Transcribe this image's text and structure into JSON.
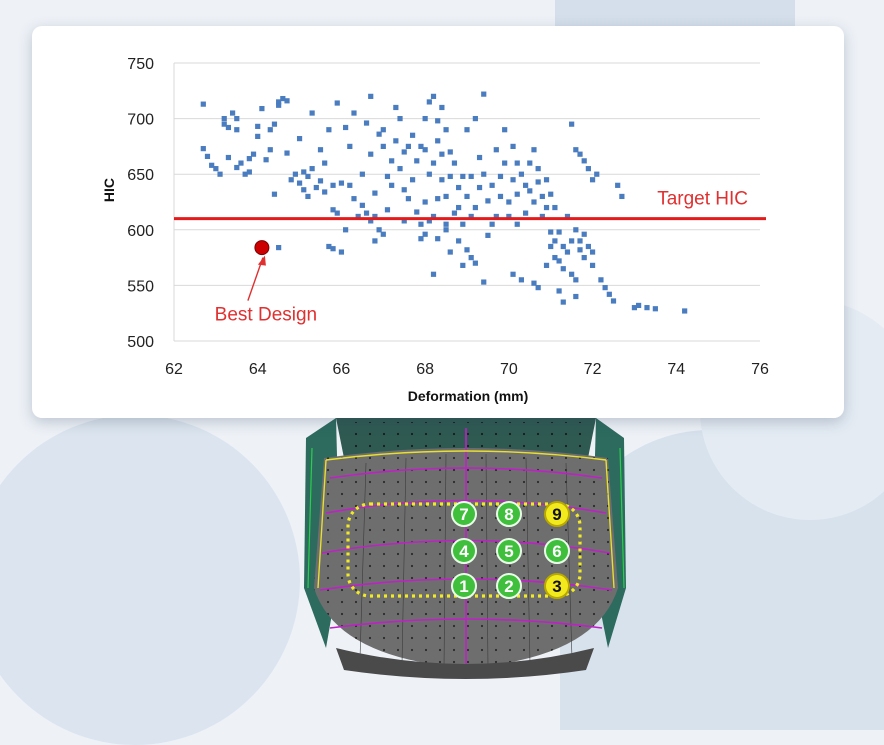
{
  "chart_data": {
    "type": "scatter",
    "title": "",
    "xlabel": "Deformation (mm)",
    "ylabel": "HIC",
    "xlim": [
      62,
      76
    ],
    "ylim": [
      500,
      750
    ],
    "x_ticks": [
      62,
      64,
      66,
      68,
      70,
      72,
      74,
      76
    ],
    "y_ticks": [
      500,
      550,
      600,
      650,
      700,
      750
    ],
    "grid": "horizontal",
    "legend": "none",
    "colors": {
      "points": "#4a7cc0",
      "target_line": "#e51b1b",
      "best_design": "#cc0000",
      "annotation": "#e03030",
      "grid": "#d9d9d9"
    },
    "reference_line": {
      "y": 610,
      "label": "Target HIC"
    },
    "highlight": {
      "x": 64.1,
      "y": 584,
      "label": "Best Design"
    },
    "series": [
      {
        "values": [
          [
            62.7,
            713
          ],
          [
            62.7,
            673
          ],
          [
            62.8,
            666
          ],
          [
            62.9,
            658
          ],
          [
            63.0,
            655
          ],
          [
            63.1,
            650
          ],
          [
            63.2,
            700
          ],
          [
            63.2,
            695
          ],
          [
            63.3,
            692
          ],
          [
            63.3,
            665
          ],
          [
            63.4,
            705
          ],
          [
            63.5,
            700
          ],
          [
            63.5,
            690
          ],
          [
            63.5,
            656
          ],
          [
            63.6,
            660
          ],
          [
            63.7,
            650
          ],
          [
            63.8,
            664
          ],
          [
            63.9,
            668
          ],
          [
            64.0,
            693
          ],
          [
            64.0,
            684
          ],
          [
            64.1,
            709
          ],
          [
            64.2,
            663
          ],
          [
            64.3,
            690
          ],
          [
            64.3,
            672
          ],
          [
            64.4,
            695
          ],
          [
            64.5,
            715
          ],
          [
            64.5,
            712
          ],
          [
            64.6,
            718
          ],
          [
            64.7,
            716
          ],
          [
            64.7,
            669
          ],
          [
            64.8,
            645
          ],
          [
            64.9,
            650
          ],
          [
            65.0,
            682
          ],
          [
            65.0,
            642
          ],
          [
            65.1,
            652
          ],
          [
            65.1,
            636
          ],
          [
            65.2,
            648
          ],
          [
            65.2,
            630
          ],
          [
            65.3,
            705
          ],
          [
            65.3,
            655
          ],
          [
            65.4,
            638
          ],
          [
            65.5,
            672
          ],
          [
            65.5,
            644
          ],
          [
            65.6,
            660
          ],
          [
            65.6,
            634
          ],
          [
            65.7,
            690
          ],
          [
            65.8,
            640
          ],
          [
            65.8,
            618
          ],
          [
            65.9,
            714
          ],
          [
            65.9,
            615
          ],
          [
            66.1,
            600
          ],
          [
            66.1,
            692
          ],
          [
            66.2,
            675
          ],
          [
            66.2,
            640
          ],
          [
            66.3,
            705
          ],
          [
            66.3,
            628
          ],
          [
            66.4,
            612
          ],
          [
            66.5,
            650
          ],
          [
            66.5,
            622
          ],
          [
            66.6,
            696
          ],
          [
            66.6,
            615
          ],
          [
            66.7,
            720
          ],
          [
            66.7,
            668
          ],
          [
            66.7,
            608
          ],
          [
            66.8,
            633
          ],
          [
            66.8,
            612
          ],
          [
            66.9,
            686
          ],
          [
            66.9,
            600
          ],
          [
            67.0,
            690
          ],
          [
            67.0,
            675
          ],
          [
            67.1,
            648
          ],
          [
            67.1,
            618
          ],
          [
            67.2,
            662
          ],
          [
            67.2,
            640
          ],
          [
            67.3,
            710
          ],
          [
            67.3,
            680
          ],
          [
            67.4,
            700
          ],
          [
            67.4,
            655
          ],
          [
            67.5,
            670
          ],
          [
            67.5,
            636
          ],
          [
            67.6,
            675
          ],
          [
            67.6,
            628
          ],
          [
            67.7,
            685
          ],
          [
            67.7,
            645
          ],
          [
            67.8,
            662
          ],
          [
            67.8,
            616
          ],
          [
            67.9,
            675
          ],
          [
            67.9,
            605
          ],
          [
            68.0,
            700
          ],
          [
            68.0,
            672
          ],
          [
            68.0,
            625
          ],
          [
            68.1,
            715
          ],
          [
            68.1,
            650
          ],
          [
            68.1,
            608
          ],
          [
            68.2,
            720
          ],
          [
            68.2,
            660
          ],
          [
            68.2,
            612
          ],
          [
            68.3,
            698
          ],
          [
            68.3,
            680
          ],
          [
            68.3,
            628
          ],
          [
            68.4,
            710
          ],
          [
            68.4,
            668
          ],
          [
            68.4,
            645
          ],
          [
            68.5,
            690
          ],
          [
            68.5,
            630
          ],
          [
            68.5,
            605
          ],
          [
            68.6,
            670
          ],
          [
            68.6,
            648
          ],
          [
            68.7,
            615
          ],
          [
            68.7,
            660
          ],
          [
            68.8,
            638
          ],
          [
            68.8,
            620
          ],
          [
            68.9,
            648
          ],
          [
            68.9,
            605
          ],
          [
            69.0,
            630
          ],
          [
            69.0,
            690
          ],
          [
            69.1,
            648
          ],
          [
            69.1,
            612
          ],
          [
            69.2,
            700
          ],
          [
            69.2,
            620
          ],
          [
            69.3,
            665
          ],
          [
            69.3,
            638
          ],
          [
            69.4,
            722
          ],
          [
            69.4,
            650
          ],
          [
            69.5,
            626
          ],
          [
            69.5,
            595
          ],
          [
            69.6,
            640
          ],
          [
            69.7,
            672
          ],
          [
            69.7,
            612
          ],
          [
            69.8,
            648
          ],
          [
            69.8,
            630
          ],
          [
            69.9,
            690
          ],
          [
            69.9,
            660
          ],
          [
            70.0,
            625
          ],
          [
            70.0,
            612
          ],
          [
            70.1,
            645
          ],
          [
            70.1,
            675
          ],
          [
            70.2,
            660
          ],
          [
            70.2,
            632
          ],
          [
            70.3,
            650
          ],
          [
            70.4,
            640
          ],
          [
            70.4,
            615
          ],
          [
            70.5,
            660
          ],
          [
            70.5,
            635
          ],
          [
            70.6,
            672
          ],
          [
            70.6,
            625
          ],
          [
            70.7,
            655
          ],
          [
            70.7,
            643
          ],
          [
            70.8,
            630
          ],
          [
            70.8,
            612
          ],
          [
            70.9,
            645
          ],
          [
            70.9,
            620
          ],
          [
            71.0,
            632
          ],
          [
            71.0,
            598
          ],
          [
            71.0,
            585
          ],
          [
            71.1,
            620
          ],
          [
            71.1,
            590
          ],
          [
            71.1,
            575
          ],
          [
            71.2,
            598
          ],
          [
            71.2,
            572
          ],
          [
            71.3,
            585
          ],
          [
            71.3,
            565
          ],
          [
            71.4,
            612
          ],
          [
            71.4,
            580
          ],
          [
            71.5,
            695
          ],
          [
            71.5,
            590
          ],
          [
            71.5,
            560
          ],
          [
            71.6,
            672
          ],
          [
            71.6,
            600
          ],
          [
            71.6,
            555
          ],
          [
            71.7,
            668
          ],
          [
            71.7,
            590
          ],
          [
            71.7,
            582
          ],
          [
            71.8,
            662
          ],
          [
            71.8,
            596
          ],
          [
            71.9,
            655
          ],
          [
            71.9,
            585
          ],
          [
            72.0,
            645
          ],
          [
            72.0,
            568
          ],
          [
            72.1,
            650
          ],
          [
            72.2,
            555
          ],
          [
            72.3,
            548
          ],
          [
            72.4,
            542
          ],
          [
            72.5,
            536
          ],
          [
            72.6,
            640
          ],
          [
            72.7,
            630
          ],
          [
            73.0,
            530
          ],
          [
            73.1,
            532
          ],
          [
            73.3,
            530
          ],
          [
            73.5,
            529
          ],
          [
            74.2,
            527
          ],
          [
            68.0,
            596
          ],
          [
            68.5,
            600
          ],
          [
            68.8,
            590
          ],
          [
            69.0,
            582
          ],
          [
            69.1,
            575
          ],
          [
            69.4,
            553
          ],
          [
            68.3,
            592
          ],
          [
            67.9,
            592
          ],
          [
            68.6,
            580
          ],
          [
            69.2,
            570
          ],
          [
            64.5,
            584
          ],
          [
            65.7,
            585
          ],
          [
            65.8,
            583
          ],
          [
            66.0,
            580
          ],
          [
            70.1,
            560
          ],
          [
            70.3,
            555
          ],
          [
            70.6,
            552
          ],
          [
            70.7,
            548
          ],
          [
            71.6,
            540
          ],
          [
            71.3,
            535
          ],
          [
            70.9,
            568
          ],
          [
            71.8,
            575
          ],
          [
            72.0,
            580
          ],
          [
            71.2,
            545
          ],
          [
            63.8,
            652
          ],
          [
            64.4,
            632
          ],
          [
            66.0,
            642
          ],
          [
            67.0,
            596
          ],
          [
            66.8,
            590
          ],
          [
            67.5,
            608
          ],
          [
            69.6,
            605
          ],
          [
            70.2,
            605
          ],
          [
            68.2,
            560
          ],
          [
            68.9,
            568
          ]
        ]
      }
    ]
  },
  "car": {
    "circle_labels": [
      "7",
      "8",
      "9",
      "4",
      "5",
      "6",
      "1",
      "2",
      "3"
    ]
  }
}
